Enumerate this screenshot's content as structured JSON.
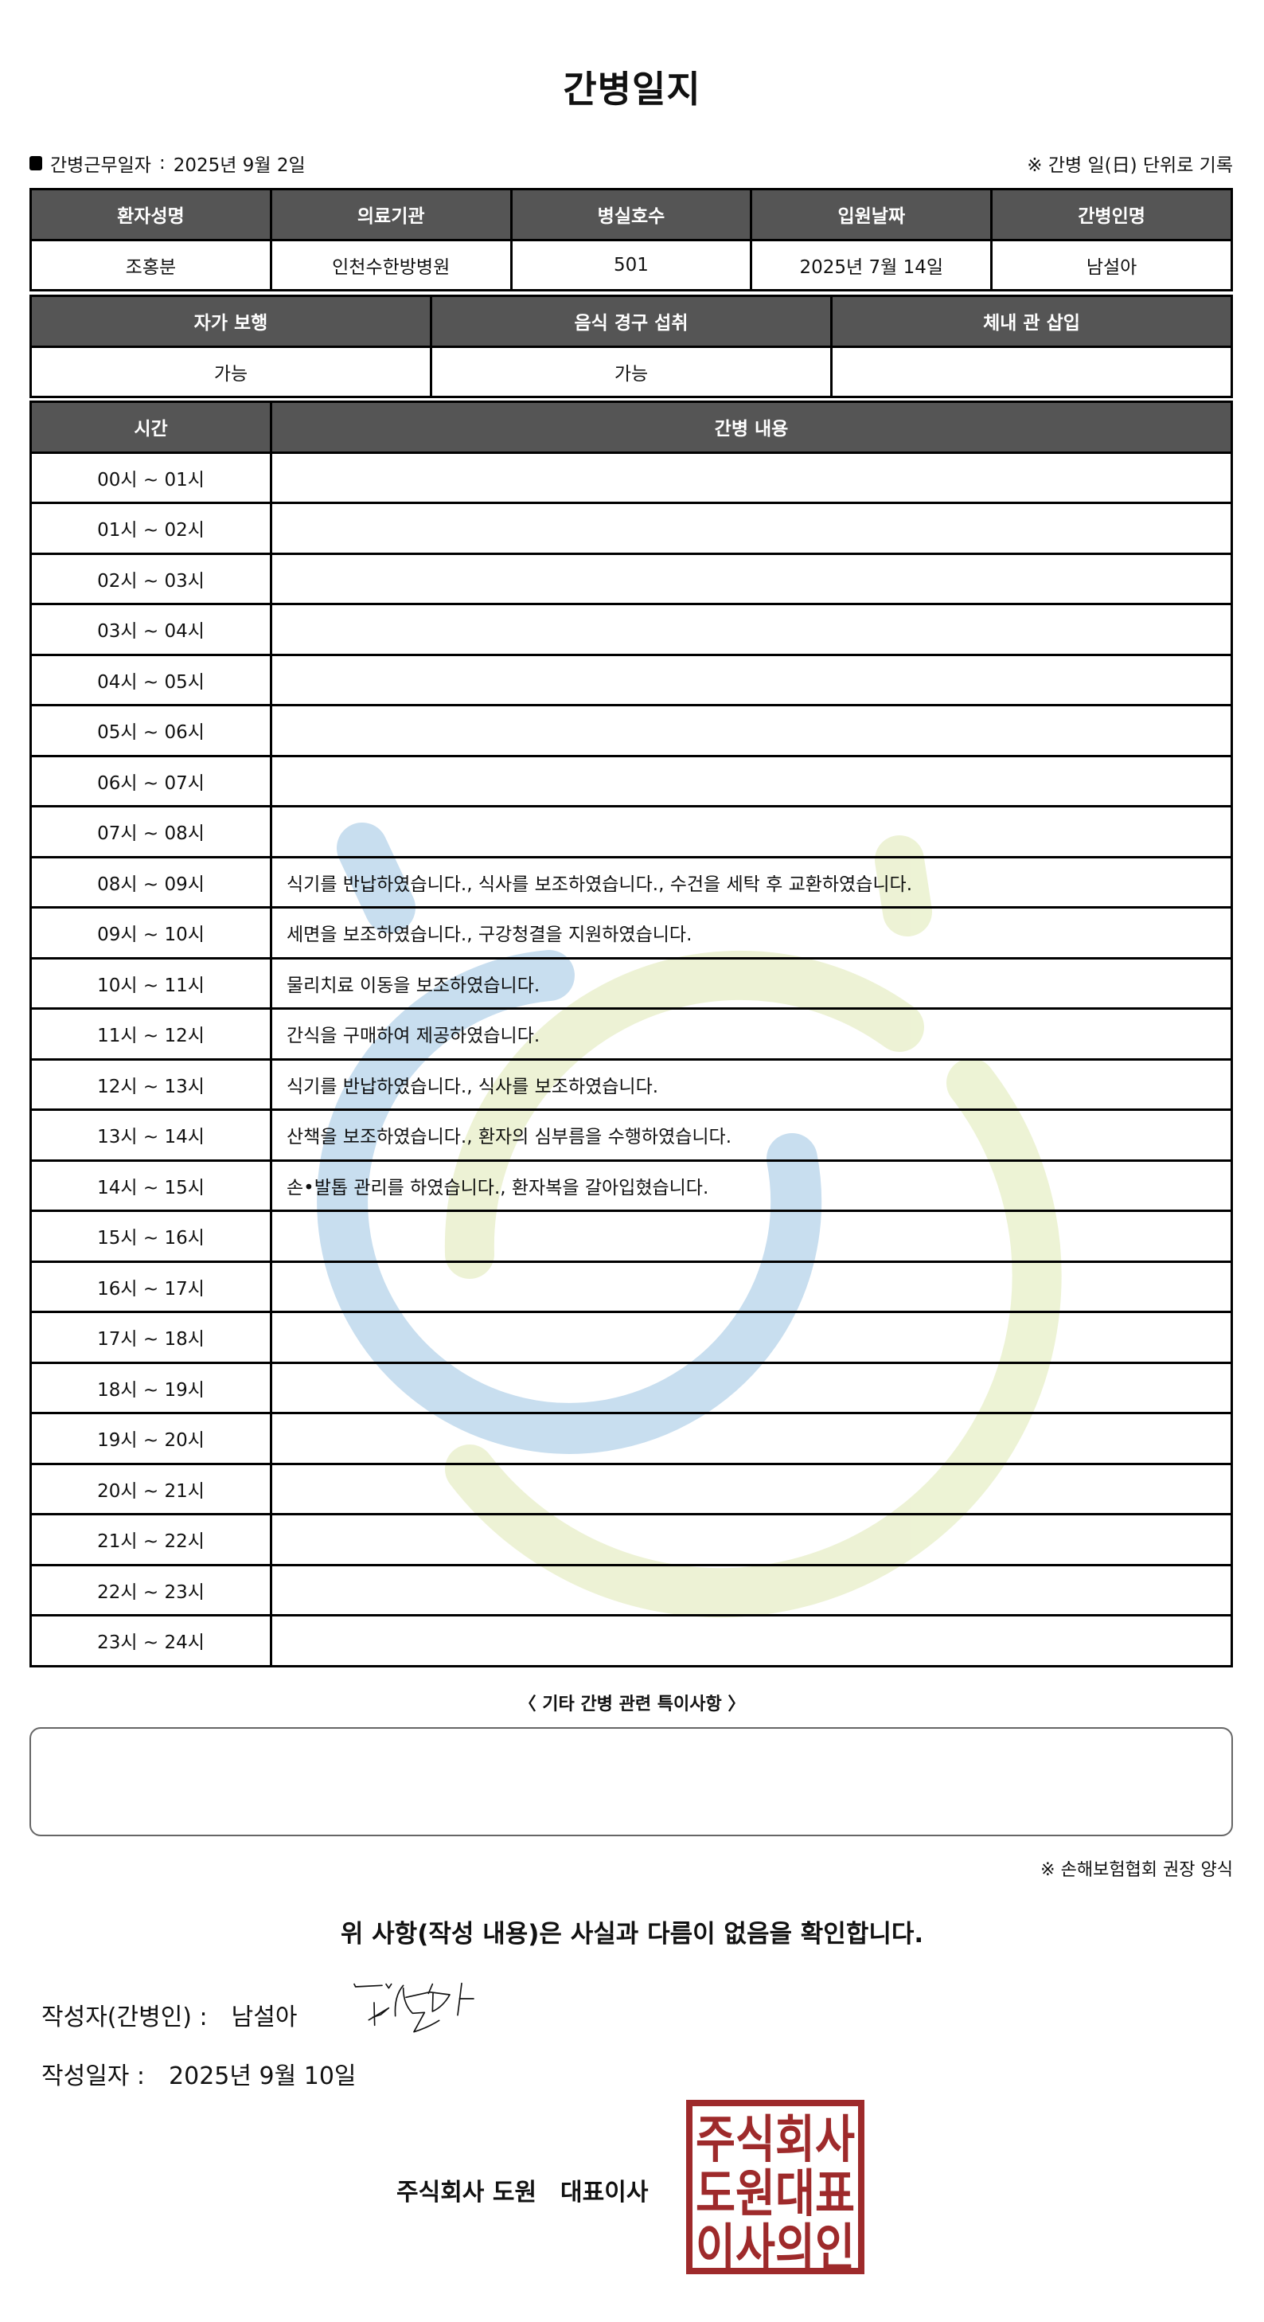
{
  "title": "간병일지",
  "work_date": {
    "label": "간병근무일자",
    "separator": ":",
    "value": "2025년 9월 2일"
  },
  "record_note": "※ 간병 일(日) 단위로 기록",
  "patient_table": {
    "headers": [
      "환자성명",
      "의료기관",
      "병실호수",
      "입원날짜",
      "간병인명"
    ],
    "values": [
      "조홍분",
      "인천수한방병원",
      "501",
      "2025년 7월 14일",
      "남설아"
    ]
  },
  "status_table": {
    "headers": [
      "자가 보행",
      "음식 경구 섭취",
      "체내 관 삽입"
    ],
    "values": [
      "가능",
      "가능",
      ""
    ]
  },
  "log_table": {
    "headers": [
      "시간",
      "간병 내용"
    ],
    "rows": [
      {
        "time": "00시 ~ 01시",
        "content": ""
      },
      {
        "time": "01시 ~ 02시",
        "content": ""
      },
      {
        "time": "02시 ~ 03시",
        "content": ""
      },
      {
        "time": "03시 ~ 04시",
        "content": ""
      },
      {
        "time": "04시 ~ 05시",
        "content": ""
      },
      {
        "time": "05시 ~ 06시",
        "content": ""
      },
      {
        "time": "06시 ~ 07시",
        "content": ""
      },
      {
        "time": "07시 ~ 08시",
        "content": ""
      },
      {
        "time": "08시 ~ 09시",
        "content": "식기를 반납하였습니다., 식사를 보조하였습니다., 수건을 세탁 후 교환하였습니다."
      },
      {
        "time": "09시 ~ 10시",
        "content": "세면을 보조하였습니다., 구강청결을 지원하였습니다."
      },
      {
        "time": "10시 ~ 11시",
        "content": "물리치료 이동을 보조하였습니다."
      },
      {
        "time": "11시 ~ 12시",
        "content": "간식을 구매하여 제공하였습니다."
      },
      {
        "time": "12시 ~ 13시",
        "content": "식기를 반납하였습니다., 식사를 보조하였습니다."
      },
      {
        "time": "13시 ~ 14시",
        "content": "산책을 보조하였습니다., 환자의 심부름을 수행하였습니다."
      },
      {
        "time": "14시 ~ 15시",
        "content": "손•발톱 관리를 하였습니다., 환자복을 갈아입혔습니다."
      },
      {
        "time": "15시 ~ 16시",
        "content": ""
      },
      {
        "time": "16시 ~ 17시",
        "content": ""
      },
      {
        "time": "17시 ~ 18시",
        "content": ""
      },
      {
        "time": "18시 ~ 19시",
        "content": ""
      },
      {
        "time": "19시 ~ 20시",
        "content": ""
      },
      {
        "time": "20시 ~ 21시",
        "content": ""
      },
      {
        "time": "21시 ~ 22시",
        "content": ""
      },
      {
        "time": "22시 ~ 23시",
        "content": ""
      },
      {
        "time": "23시 ~ 24시",
        "content": ""
      }
    ]
  },
  "special_notes": {
    "title": "〈 기타 간병 관련 특이사항 〉",
    "value": ""
  },
  "form_note": "※ 손해보험협회 권장 양식",
  "confirmation": "위 사항(작성 내용)은 사실과 다름이 없음을 확인합니다.",
  "writer": {
    "label": "작성자(간병인) :",
    "name": "남설아"
  },
  "written_date": {
    "label": "작성일자 :",
    "value": "2025년 9월 10일"
  },
  "company": {
    "name": "주식회사 도원",
    "role": "대표이사"
  },
  "stamp": {
    "lines": [
      "주식회사",
      "도원대표",
      "이사의인"
    ],
    "color": "#9e2a2b"
  },
  "colors": {
    "header_bg": "#555555",
    "watermark_blue": "#c6ddef",
    "watermark_green": "#ecf2d3"
  }
}
